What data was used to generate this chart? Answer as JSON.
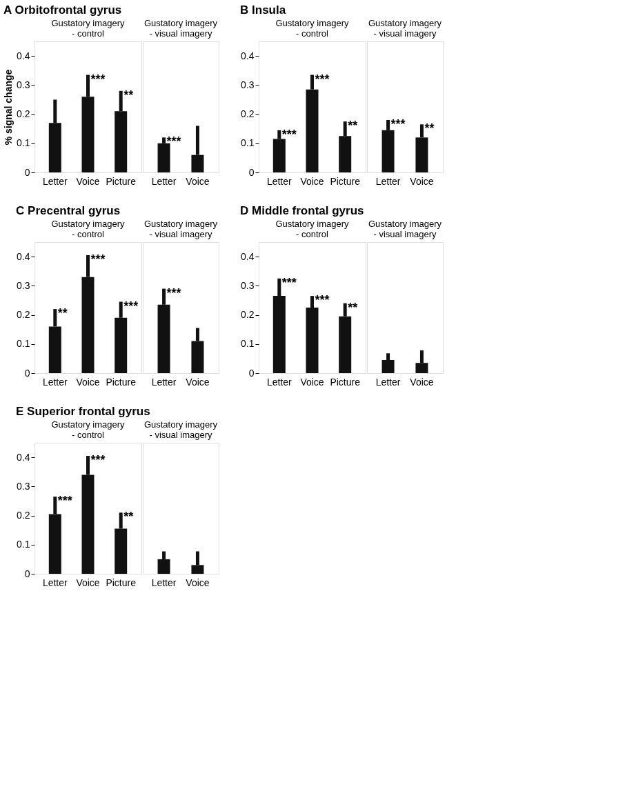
{
  "chart_data": [
    {
      "type": "bar",
      "title": "A Orbitofrontal gyrus",
      "subtitle": "Gustatory imagery\n- control",
      "ylabel": "% signal change",
      "categories": [
        "Letter",
        "Voice",
        "Picture"
      ],
      "values": [
        0.17,
        0.26,
        0.21
      ],
      "errors": [
        [
          0.17,
          0.25
        ],
        [
          0.26,
          0.335
        ],
        [
          0.21,
          0.28
        ]
      ],
      "color": "#111111",
      "ylim": [
        0,
        0.45
      ],
      "yticks": [
        0,
        0.1,
        0.2,
        0.3,
        0.4
      ],
      "grid": false,
      "annotations": [
        {
          "text": "***",
          "x": "Voice",
          "y": 0.335
        },
        {
          "text": "**",
          "x": "Picture",
          "y": 0.28
        }
      ]
    },
    {
      "type": "bar",
      "subtitle": "Gustatory imagery\n- visual imagery",
      "categories": [
        "Letter",
        "Voice"
      ],
      "values": [
        0.1,
        0.06
      ],
      "errors": [
        [
          0.1,
          0.12
        ],
        [
          0.06,
          0.16
        ]
      ],
      "color": "#111111",
      "ylim": [
        0,
        0.45
      ],
      "tick_labels": "x",
      "grid": false,
      "annotations": [
        {
          "text": "***",
          "x": "Letter",
          "y": 0.12
        }
      ]
    },
    {
      "type": "bar",
      "title": "B Insula",
      "subtitle": "Gustatory imagery\n- control",
      "categories": [
        "Letter",
        "Voice",
        "Picture"
      ],
      "values": [
        0.115,
        0.285,
        0.125
      ],
      "errors": [
        [
          0.115,
          0.145
        ],
        [
          0.285,
          0.335
        ],
        [
          0.125,
          0.175
        ]
      ],
      "color": "#111111",
      "ylim": [
        0,
        0.45
      ],
      "yticks": [
        0,
        0.1,
        0.2,
        0.3,
        0.4
      ],
      "grid": false,
      "annotations": [
        {
          "text": "***",
          "x": "Letter",
          "y": 0.145
        },
        {
          "text": "***",
          "x": "Voice",
          "y": 0.335
        },
        {
          "text": "**",
          "x": "Picture",
          "y": 0.175
        }
      ]
    },
    {
      "type": "bar",
      "subtitle": "Gustatory imagery\n- visual imagery",
      "categories": [
        "Letter",
        "Voice"
      ],
      "values": [
        0.145,
        0.12
      ],
      "errors": [
        [
          0.145,
          0.18
        ],
        [
          0.12,
          0.165
        ]
      ],
      "color": "#111111",
      "ylim": [
        0,
        0.45
      ],
      "tick_labels": "x",
      "grid": false,
      "annotations": [
        {
          "text": "***",
          "x": "Letter",
          "y": 0.18
        },
        {
          "text": "**",
          "x": "Voice",
          "y": 0.165
        }
      ]
    },
    {
      "type": "bar",
      "title": "C Precentral gyrus",
      "subtitle": "Gustatory imagery\n- control",
      "categories": [
        "Letter",
        "Voice",
        "Picture"
      ],
      "values": [
        0.16,
        0.33,
        0.19
      ],
      "errors": [
        [
          0.16,
          0.22
        ],
        [
          0.33,
          0.405
        ],
        [
          0.19,
          0.245
        ]
      ],
      "color": "#111111",
      "ylim": [
        0,
        0.45
      ],
      "yticks": [
        0,
        0.1,
        0.2,
        0.3,
        0.4
      ],
      "grid": false,
      "annotations": [
        {
          "text": "**",
          "x": "Letter",
          "y": 0.22
        },
        {
          "text": "***",
          "x": "Voice",
          "y": 0.405
        },
        {
          "text": "***",
          "x": "Picture",
          "y": 0.245
        }
      ]
    },
    {
      "type": "bar",
      "subtitle": "Gustatory imagery\n- visual imagery",
      "categories": [
        "Letter",
        "Voice"
      ],
      "values": [
        0.235,
        0.11
      ],
      "errors": [
        [
          0.235,
          0.29
        ],
        [
          0.11,
          0.155
        ]
      ],
      "color": "#111111",
      "ylim": [
        0,
        0.45
      ],
      "tick_labels": "x",
      "grid": false,
      "annotations": [
        {
          "text": "***",
          "x": "Letter",
          "y": 0.29
        }
      ]
    },
    {
      "type": "bar",
      "title": "D Middle frontal gyrus",
      "subtitle": "Gustatory imagery\n- control",
      "categories": [
        "Letter",
        "Voice",
        "Picture"
      ],
      "values": [
        0.265,
        0.225,
        0.195
      ],
      "errors": [
        [
          0.265,
          0.325
        ],
        [
          0.225,
          0.265
        ],
        [
          0.195,
          0.24
        ]
      ],
      "color": "#111111",
      "ylim": [
        0,
        0.45
      ],
      "yticks": [
        0,
        0.1,
        0.2,
        0.3,
        0.4
      ],
      "grid": false,
      "annotations": [
        {
          "text": "***",
          "x": "Letter",
          "y": 0.325
        },
        {
          "text": "***",
          "x": "Voice",
          "y": 0.265
        },
        {
          "text": "**",
          "x": "Picture",
          "y": 0.24
        }
      ]
    },
    {
      "type": "bar",
      "subtitle": "Gustatory imagery\n- visual imagery",
      "categories": [
        "Letter",
        "Voice"
      ],
      "values": [
        0.045,
        0.035
      ],
      "errors": [
        [
          0.045,
          0.068
        ],
        [
          0.035,
          0.078
        ]
      ],
      "color": "#111111",
      "ylim": [
        0,
        0.45
      ],
      "tick_labels": "x",
      "grid": false
    },
    {
      "type": "bar",
      "title": "E Superior frontal gyrus",
      "subtitle": "Gustatory imagery\n- control",
      "categories": [
        "Letter",
        "Voice",
        "Picture"
      ],
      "values": [
        0.205,
        0.34,
        0.155
      ],
      "errors": [
        [
          0.205,
          0.265
        ],
        [
          0.34,
          0.405
        ],
        [
          0.155,
          0.21
        ]
      ],
      "color": "#111111",
      "ylim": [
        0,
        0.45
      ],
      "yticks": [
        0,
        0.1,
        0.2,
        0.3,
        0.4
      ],
      "grid": false,
      "annotations": [
        {
          "text": "***",
          "x": "Letter",
          "y": 0.265
        },
        {
          "text": "***",
          "x": "Voice",
          "y": 0.405
        },
        {
          "text": "**",
          "x": "Picture",
          "y": 0.21
        }
      ]
    },
    {
      "type": "bar",
      "subtitle": "Gustatory imagery\n- visual imagery",
      "categories": [
        "Letter",
        "Voice"
      ],
      "values": [
        0.05,
        0.03
      ],
      "errors": [
        [
          0.05,
          0.077
        ],
        [
          0.03,
          0.077
        ]
      ],
      "color": "#111111",
      "ylim": [
        0,
        0.45
      ],
      "tick_labels": "x",
      "grid": false
    }
  ]
}
